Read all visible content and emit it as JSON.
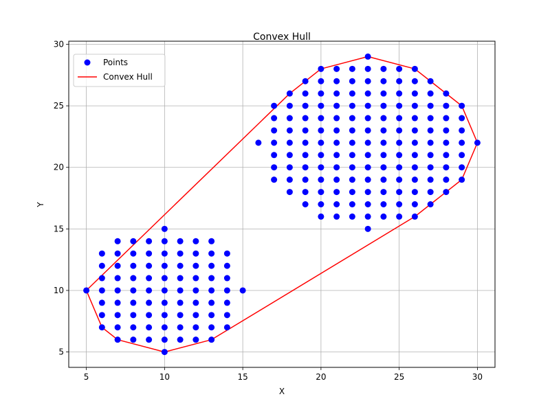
{
  "chart_data": {
    "type": "scatter",
    "title": "Convex Hull",
    "xlabel": "X",
    "ylabel": "Y",
    "xlim": [
      3.875,
      31.125
    ],
    "ylim": [
      3.75,
      30.25
    ],
    "xticks": [
      5,
      10,
      15,
      20,
      25,
      30
    ],
    "yticks": [
      5,
      10,
      15,
      20,
      25,
      30
    ],
    "grid": true,
    "legend": {
      "placement": "top-left",
      "entries": [
        "Points",
        "Convex Hull"
      ]
    },
    "colors": {
      "points": "#0000ff",
      "hull": "#ff0000",
      "grid": "#b0b0b0"
    },
    "series": [
      {
        "name": "Points",
        "kind": "scatter",
        "row_ranges": [
          {
            "y": 5,
            "x": [
              10,
              10
            ]
          },
          {
            "y": 6,
            "x": [
              7,
              13
            ]
          },
          {
            "y": 7,
            "x": [
              6,
              14
            ]
          },
          {
            "y": 8,
            "x": [
              6,
              14
            ]
          },
          {
            "y": 9,
            "x": [
              6,
              14
            ]
          },
          {
            "y": 10,
            "x": [
              5,
              15
            ]
          },
          {
            "y": 11,
            "x": [
              6,
              14
            ]
          },
          {
            "y": 12,
            "x": [
              6,
              14
            ]
          },
          {
            "y": 13,
            "x": [
              6,
              14
            ]
          },
          {
            "y": 14,
            "x": [
              7,
              13
            ]
          },
          {
            "y": 15,
            "x": [
              10,
              10
            ]
          },
          {
            "y": 15,
            "x": [
              23,
              23
            ]
          },
          {
            "y": 16,
            "x": [
              20,
              26
            ]
          },
          {
            "y": 17,
            "x": [
              19,
              27
            ]
          },
          {
            "y": 18,
            "x": [
              18,
              28
            ]
          },
          {
            "y": 19,
            "x": [
              17,
              29
            ]
          },
          {
            "y": 20,
            "x": [
              17,
              29
            ]
          },
          {
            "y": 21,
            "x": [
              17,
              29
            ]
          },
          {
            "y": 22,
            "x": [
              16,
              30
            ]
          },
          {
            "y": 23,
            "x": [
              17,
              29
            ]
          },
          {
            "y": 24,
            "x": [
              17,
              29
            ]
          },
          {
            "y": 25,
            "x": [
              17,
              29
            ]
          },
          {
            "y": 26,
            "x": [
              18,
              28
            ]
          },
          {
            "y": 27,
            "x": [
              19,
              27
            ]
          },
          {
            "y": 28,
            "x": [
              20,
              26
            ]
          },
          {
            "y": 29,
            "x": [
              23,
              23
            ]
          }
        ]
      },
      {
        "name": "Convex Hull",
        "kind": "line",
        "points": [
          [
            5,
            10
          ],
          [
            6,
            7
          ],
          [
            7,
            6
          ],
          [
            10,
            5
          ],
          [
            13,
            6
          ],
          [
            26,
            16
          ],
          [
            27,
            17
          ],
          [
            28,
            18
          ],
          [
            29,
            19
          ],
          [
            30,
            22
          ],
          [
            29,
            25
          ],
          [
            27,
            27
          ],
          [
            26,
            28
          ],
          [
            23,
            29
          ],
          [
            20,
            28
          ],
          [
            18,
            26
          ],
          [
            5,
            10
          ]
        ]
      }
    ]
  }
}
